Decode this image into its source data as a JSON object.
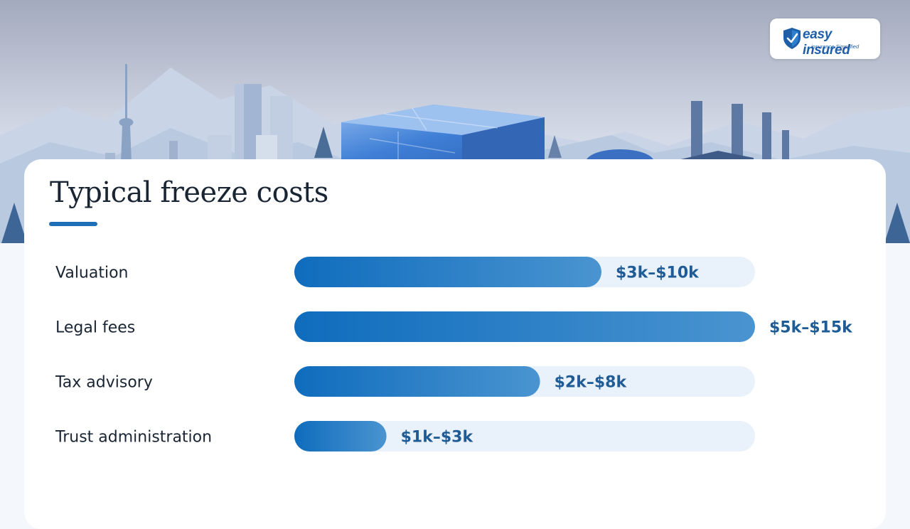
{
  "brand": {
    "name": "easy insured",
    "tagline": "insurance Simplified"
  },
  "colors": {
    "accent": "#1f6fb8",
    "bar_start": "#0f6cbd",
    "bar_end": "#4a94d0",
    "track": "#e9f1fa",
    "value_text": "#1f5c96",
    "sky_top": "#a3aabd",
    "sky_bottom": "#dde6f2"
  },
  "chart_data": {
    "type": "bar",
    "orientation": "horizontal",
    "title": "Typical freeze costs",
    "categories": [
      "Valuation",
      "Legal fees",
      "Tax advisory",
      "Trust administration"
    ],
    "ranges": [
      [
        3000,
        10000
      ],
      [
        5000,
        15000
      ],
      [
        2000,
        8000
      ],
      [
        1000,
        3000
      ]
    ],
    "values": [
      10000,
      15000,
      8000,
      3000
    ],
    "value_labels": [
      "$3k–$10k",
      "$5k–$15k",
      "$2k–$8k",
      "$1k–$3k"
    ],
    "xlim": [
      0,
      15000
    ],
    "grid": false,
    "legend": "none"
  }
}
